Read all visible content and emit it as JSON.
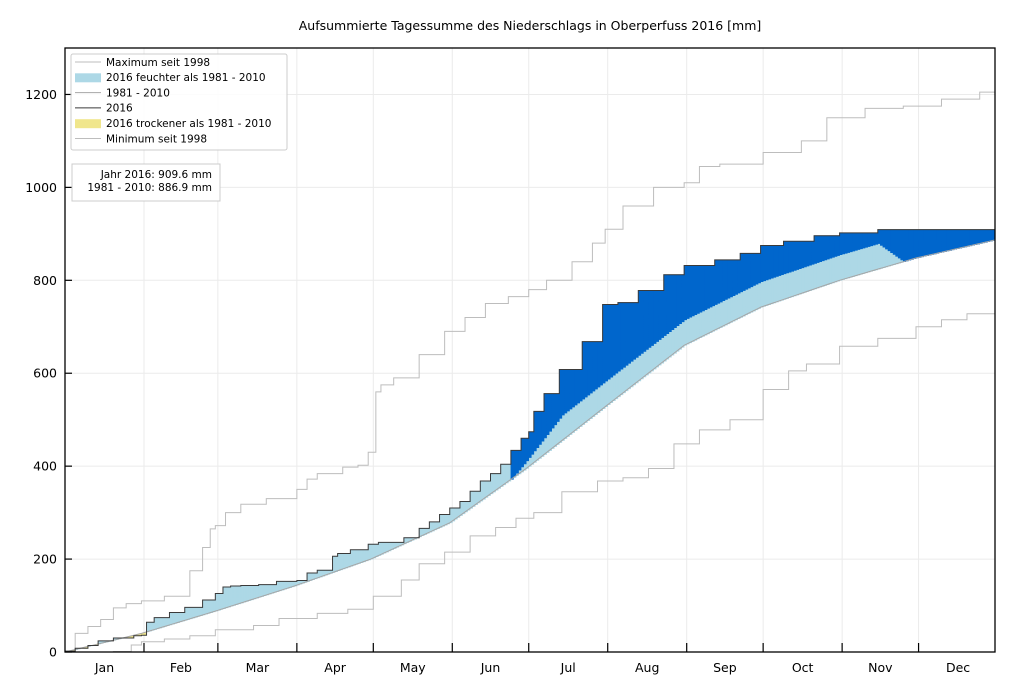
{
  "chart_data": {
    "type": "area",
    "title": "Aufsummierte Tagessumme des Niederschlags in Oberperfuss 2016 [mm]",
    "xlabel": "",
    "ylabel": "",
    "xlim": [
      1,
      366
    ],
    "ylim": [
      0,
      1300
    ],
    "grid": true,
    "yticks": [
      0,
      200,
      400,
      600,
      800,
      1000,
      1200
    ],
    "month_boundaries_doy": [
      1,
      32,
      61,
      92,
      122,
      153,
      183,
      214,
      245,
      275,
      306,
      336,
      367
    ],
    "months": [
      "Jan",
      "Feb",
      "Mar",
      "Apr",
      "May",
      "Jun",
      "Jul",
      "Aug",
      "Sep",
      "Oct",
      "Nov",
      "Dec"
    ],
    "legend": {
      "placement": "top-left",
      "entries": [
        {
          "label": "Maximum seit 1998",
          "kind": "line",
          "color": "#bdbdbd"
        },
        {
          "label": "2016 feuchter als 1981 - 2010",
          "kind": "patch",
          "color": "#add8e6"
        },
        {
          "label": "1981 - 2010",
          "kind": "line",
          "color": "#a6a6a6"
        },
        {
          "label": "2016",
          "kind": "line",
          "color": "#3a3a3a"
        },
        {
          "label": "2016 trockener als 1981 - 2010",
          "kind": "patch",
          "color": "#f0e68c"
        },
        {
          "label": "Minimum seit 1998",
          "kind": "line",
          "color": "#bdbdbd"
        }
      ]
    },
    "annotation": {
      "line1": "Jahr 2016: 909.6 mm",
      "line2": "1981 - 2010: 886.9 mm"
    },
    "colors": {
      "wetter": "#add8e6",
      "much_wetter": "#0066cc",
      "drier": "#f0e68c",
      "line_2016": "#3a3a3a",
      "line_clim": "#a6a6a6",
      "line_extreme": "#bdbdbd",
      "grid": "#ebebeb"
    },
    "series": [
      {
        "name": "2016",
        "doy": [
          1,
          5,
          10,
          14,
          20,
          28,
          31,
          33,
          36,
          42,
          48,
          55,
          60,
          63,
          66,
          70,
          77,
          84,
          92,
          96,
          100,
          106,
          108,
          113,
          120,
          124,
          128,
          134,
          140,
          144,
          148,
          152,
          156,
          160,
          164,
          168,
          172,
          176,
          180,
          183,
          185,
          189,
          195,
          204,
          212,
          218,
          226,
          236,
          244,
          256,
          266,
          274,
          283,
          295,
          305,
          320,
          366
        ],
        "values": [
          2,
          8,
          14,
          24,
          30,
          35,
          36,
          64,
          74,
          85,
          96,
          112,
          126,
          140,
          142,
          143,
          145,
          152,
          154,
          170,
          176,
          206,
          212,
          220,
          232,
          236,
          236,
          246,
          266,
          280,
          296,
          310,
          324,
          346,
          368,
          384,
          404,
          434,
          460,
          474,
          518,
          556,
          608,
          668,
          748,
          752,
          778,
          812,
          832,
          844,
          858,
          875,
          884,
          896,
          902,
          909,
          909.6
        ]
      },
      {
        "name": "1981 - 2010",
        "doy": [
          1,
          31,
          60,
          91,
          121,
          152,
          182,
          213,
          244,
          274,
          305,
          335,
          366
        ],
        "values": [
          0,
          40,
          88,
          142,
          200,
          278,
          395,
          528,
          660,
          742,
          800,
          848,
          886.9
        ]
      },
      {
        "name": "Maximum seit 1998",
        "doy": [
          1,
          5,
          10,
          15,
          20,
          25,
          31,
          40,
          50,
          55,
          58,
          60,
          64,
          70,
          80,
          92,
          96,
          100,
          110,
          116,
          120,
          123,
          125,
          130,
          140,
          150,
          158,
          166,
          175,
          183,
          190,
          200,
          208,
          213,
          220,
          232,
          244,
          250,
          258,
          275,
          290,
          300,
          315,
          330,
          345,
          360,
          366
        ],
        "values": [
          0,
          40,
          55,
          70,
          95,
          104,
          110,
          120,
          175,
          225,
          265,
          272,
          300,
          318,
          330,
          350,
          372,
          384,
          398,
          402,
          430,
          560,
          575,
          590,
          640,
          690,
          720,
          750,
          765,
          780,
          800,
          840,
          880,
          910,
          960,
          1000,
          1010,
          1045,
          1050,
          1075,
          1100,
          1150,
          1170,
          1175,
          1190,
          1205,
          1212
        ]
      },
      {
        "name": "Minimum seit 1998",
        "doy": [
          1,
          20,
          27,
          31,
          40,
          50,
          60,
          75,
          85,
          100,
          112,
          122,
          133,
          140,
          150,
          160,
          170,
          178,
          185,
          196,
          210,
          220,
          230,
          240,
          250,
          262,
          275,
          285,
          292,
          305,
          320,
          335,
          345,
          355,
          366
        ],
        "values": [
          0,
          1,
          15,
          22,
          28,
          35,
          48,
          57,
          72,
          83,
          92,
          120,
          155,
          190,
          215,
          250,
          268,
          288,
          300,
          345,
          368,
          375,
          395,
          448,
          478,
          500,
          565,
          605,
          620,
          658,
          675,
          700,
          715,
          728,
          740
        ]
      }
    ]
  }
}
